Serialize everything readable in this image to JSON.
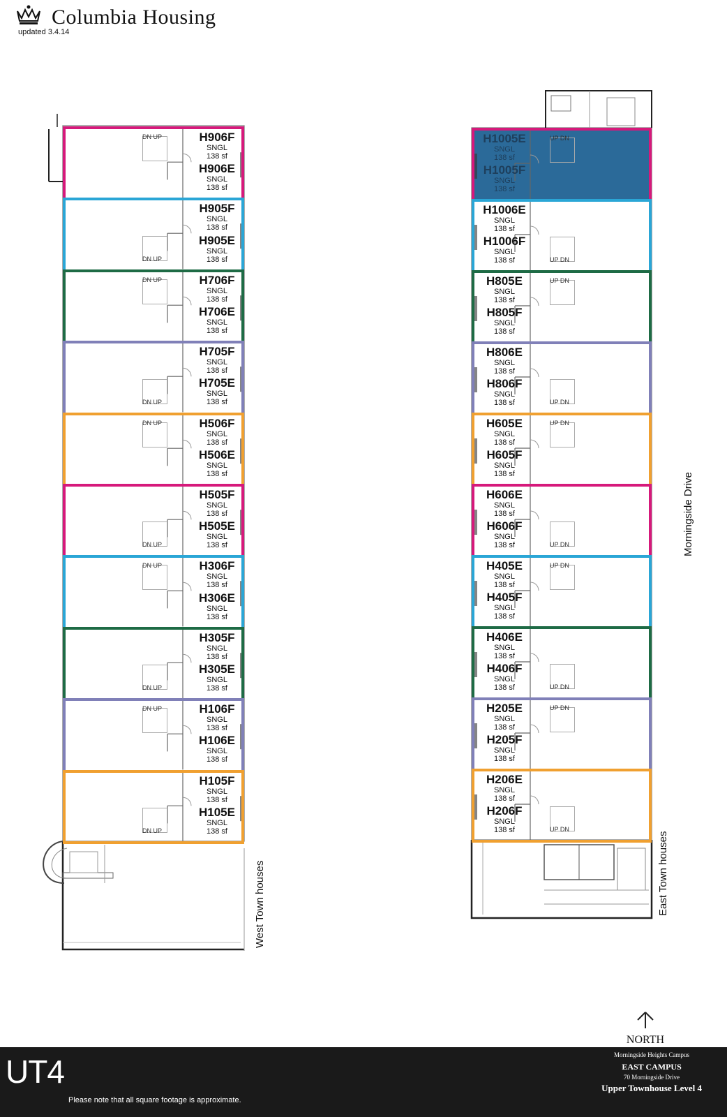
{
  "header": {
    "brand": "Columbia Housing",
    "updated": "updated 3.4.14"
  },
  "colors": {
    "magenta": "#d6197b",
    "cyan": "#2aa6d6",
    "green": "#1e6b45",
    "purple": "#8080b8",
    "orange": "#f0a030",
    "selected": "#2b6a99"
  },
  "west": [
    {
      "color": "magenta",
      "rooms": [
        {
          "id": "H906F",
          "type": "SNGL",
          "sf": "138 sf"
        },
        {
          "id": "H906E",
          "type": "SNGL",
          "sf": "138 sf"
        }
      ],
      "stair": "DN UP"
    },
    {
      "color": "cyan",
      "rooms": [
        {
          "id": "H905F",
          "type": "SNGL",
          "sf": "138 sf"
        },
        {
          "id": "H905E",
          "type": "SNGL",
          "sf": "138 sf"
        }
      ],
      "stair": "DN UP"
    },
    {
      "color": "green",
      "rooms": [
        {
          "id": "H706F",
          "type": "SNGL",
          "sf": "138 sf"
        },
        {
          "id": "H706E",
          "type": "SNGL",
          "sf": "138 sf"
        }
      ],
      "stair": "DN UP"
    },
    {
      "color": "purple",
      "rooms": [
        {
          "id": "H705F",
          "type": "SNGL",
          "sf": "138 sf"
        },
        {
          "id": "H705E",
          "type": "SNGL",
          "sf": "138 sf"
        }
      ],
      "stair": "DN UP"
    },
    {
      "color": "orange",
      "rooms": [
        {
          "id": "H506F",
          "type": "SNGL",
          "sf": "138 sf"
        },
        {
          "id": "H506E",
          "type": "SNGL",
          "sf": "138 sf"
        }
      ],
      "stair": "DN UP"
    },
    {
      "color": "magenta",
      "rooms": [
        {
          "id": "H505F",
          "type": "SNGL",
          "sf": "138 sf"
        },
        {
          "id": "H505E",
          "type": "SNGL",
          "sf": "138 sf"
        }
      ],
      "stair": "DN UP"
    },
    {
      "color": "cyan",
      "rooms": [
        {
          "id": "H306F",
          "type": "SNGL",
          "sf": "138 sf"
        },
        {
          "id": "H306E",
          "type": "SNGL",
          "sf": "138 sf"
        }
      ],
      "stair": "DN UP"
    },
    {
      "color": "green",
      "rooms": [
        {
          "id": "H305F",
          "type": "SNGL",
          "sf": "138 sf"
        },
        {
          "id": "H305E",
          "type": "SNGL",
          "sf": "138 sf"
        }
      ],
      "stair": "DN UP"
    },
    {
      "color": "purple",
      "rooms": [
        {
          "id": "H106F",
          "type": "SNGL",
          "sf": "138 sf"
        },
        {
          "id": "H106E",
          "type": "SNGL",
          "sf": "138 sf"
        }
      ],
      "stair": "DN UP"
    },
    {
      "color": "orange",
      "rooms": [
        {
          "id": "H105F",
          "type": "SNGL",
          "sf": "138 sf"
        },
        {
          "id": "H105E",
          "type": "SNGL",
          "sf": "138 sf"
        }
      ],
      "stair": "DN UP"
    }
  ],
  "east": [
    {
      "color": "magenta",
      "selected": true,
      "rooms": [
        {
          "id": "H1005E",
          "type": "SNGL",
          "sf": "138 sf"
        },
        {
          "id": "H1005F",
          "type": "SNGL",
          "sf": "138 sf"
        }
      ],
      "stair": "UP DN"
    },
    {
      "color": "cyan",
      "rooms": [
        {
          "id": "H1006E",
          "type": "SNGL",
          "sf": "138 sf"
        },
        {
          "id": "H1006F",
          "type": "SNGL",
          "sf": "138 sf"
        }
      ],
      "stair": "UP DN"
    },
    {
      "color": "green",
      "rooms": [
        {
          "id": "H805E",
          "type": "SNGL",
          "sf": "138 sf"
        },
        {
          "id": "H805F",
          "type": "SNGL",
          "sf": "138 sf"
        }
      ],
      "stair": "UP DN"
    },
    {
      "color": "purple",
      "rooms": [
        {
          "id": "H806E",
          "type": "SNGL",
          "sf": "138 sf"
        },
        {
          "id": "H806F",
          "type": "SNGL",
          "sf": "138 sf"
        }
      ],
      "stair": "UP DN"
    },
    {
      "color": "orange",
      "rooms": [
        {
          "id": "H605E",
          "type": "SNGL",
          "sf": "138 sf"
        },
        {
          "id": "H605F",
          "type": "SNGL",
          "sf": "138 sf"
        }
      ],
      "stair": "UP DN"
    },
    {
      "color": "magenta",
      "rooms": [
        {
          "id": "H606E",
          "type": "SNGL",
          "sf": "138 sf"
        },
        {
          "id": "H606F",
          "type": "SNGL",
          "sf": "138 sf"
        }
      ],
      "stair": "UP DN"
    },
    {
      "color": "cyan",
      "rooms": [
        {
          "id": "H405E",
          "type": "SNGL",
          "sf": "138 sf"
        },
        {
          "id": "H405F",
          "type": "SNGL",
          "sf": "138 sf"
        }
      ],
      "stair": "UP DN"
    },
    {
      "color": "green",
      "rooms": [
        {
          "id": "H406E",
          "type": "SNGL",
          "sf": "138 sf"
        },
        {
          "id": "H406F",
          "type": "SNGL",
          "sf": "138 sf"
        }
      ],
      "stair": "UP DN"
    },
    {
      "color": "purple",
      "rooms": [
        {
          "id": "H205E",
          "type": "SNGL",
          "sf": "138 sf"
        },
        {
          "id": "H205F",
          "type": "SNGL",
          "sf": "138 sf"
        }
      ],
      "stair": "UP DN"
    },
    {
      "color": "orange",
      "rooms": [
        {
          "id": "H206E",
          "type": "SNGL",
          "sf": "138 sf"
        },
        {
          "id": "H206F",
          "type": "SNGL",
          "sf": "138 sf"
        }
      ],
      "stair": "UP DN"
    }
  ],
  "labels": {
    "west_street": "West Town houses",
    "east_street": "East Town houses",
    "avenue": "Morningside Drive",
    "north": "NORTH"
  },
  "footer": {
    "code": "UT4",
    "note": "Please note that all square footage is approximate.",
    "campus_line1": "Morningside Heights Campus",
    "campus_line2": "EAST CAMPUS",
    "campus_line3": "70 Morningside Drive",
    "campus_line4": "Upper Townhouse Level 4"
  }
}
